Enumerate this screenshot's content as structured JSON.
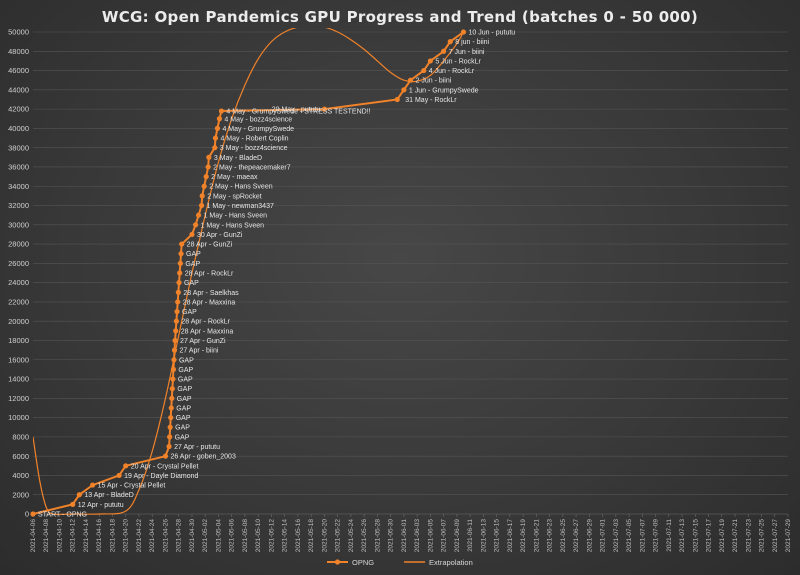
{
  "chart_data": {
    "type": "line",
    "title": "WCG: Open Pandemics GPU Progress and Trend (batches 0 - 50 000)",
    "xlabel": "",
    "ylabel": "",
    "ylim": [
      0,
      50000
    ],
    "y_ticks": [
      0,
      2000,
      4000,
      6000,
      8000,
      10000,
      12000,
      14000,
      16000,
      18000,
      20000,
      22000,
      24000,
      26000,
      28000,
      30000,
      32000,
      34000,
      36000,
      38000,
      40000,
      42000,
      44000,
      46000,
      48000,
      50000
    ],
    "x_ticks": [
      "2021-04-06",
      "2021-04-08",
      "2021-04-10",
      "2021-04-12",
      "2021-04-14",
      "2021-04-16",
      "2021-04-18",
      "2021-04-20",
      "2021-04-22",
      "2021-04-24",
      "2021-04-26",
      "2021-04-28",
      "2021-04-30",
      "2021-05-02",
      "2021-05-04",
      "2021-05-06",
      "2021-05-08",
      "2021-05-10",
      "2021-05-12",
      "2021-05-14",
      "2021-05-16",
      "2021-05-18",
      "2021-05-20",
      "2021-05-22",
      "2021-05-24",
      "2021-05-26",
      "2021-05-28",
      "2021-05-30",
      "2021-06-01",
      "2021-06-03",
      "2021-06-05",
      "2021-06-07",
      "2021-06-09",
      "2021-06-11",
      "2021-06-13",
      "2021-06-15",
      "2021-06-17",
      "2021-06-19",
      "2021-06-21",
      "2021-06-23",
      "2021-06-25",
      "2021-06-27",
      "2021-06-29",
      "2021-07-01",
      "2021-07-03",
      "2021-07-05",
      "2021-07-07",
      "2021-07-09",
      "2021-07-11",
      "2021-07-13",
      "2021-07-15",
      "2021-07-17",
      "2021-07-19",
      "2021-07-21",
      "2021-07-23",
      "2021-07-25",
      "2021-07-27",
      "2021-07-29"
    ],
    "grid": true,
    "legend_position": "bottom",
    "colors": {
      "series": "#f0822a",
      "background": "#3a3a3a",
      "grid": "#555555"
    },
    "series": [
      {
        "name": "OPNG",
        "marker": "circle",
        "points": [
          {
            "x": "2021-04-06",
            "y": 0,
            "label": "START - OPNG"
          },
          {
            "x": "2021-04-12",
            "y": 1000,
            "label": "12 Apr - pututu"
          },
          {
            "x": "2021-04-13",
            "y": 2000,
            "label": "13 Apr - BladeD"
          },
          {
            "x": "2021-04-15",
            "y": 3000,
            "label": "15 Apr - Crystal Pellet"
          },
          {
            "x": "2021-04-19",
            "y": 4000,
            "label": "19 Apr - Dayle Diamond"
          },
          {
            "x": "2021-04-20",
            "y": 5000,
            "label": "20 Apr - Crystal Pellet"
          },
          {
            "x": "2021-04-26",
            "y": 6000,
            "label": "26 Apr - goben_2003"
          },
          {
            "x": "2021-04-27",
            "y": 7000,
            "label": "27 Apr - pututu"
          },
          {
            "x": "2021-04-27",
            "y": 8000,
            "label": "GAP"
          },
          {
            "x": "2021-04-27",
            "y": 9000,
            "label": "GAP"
          },
          {
            "x": "2021-04-27",
            "y": 10000,
            "label": "GAP"
          },
          {
            "x": "2021-04-27",
            "y": 11000,
            "label": "GAP"
          },
          {
            "x": "2021-04-27",
            "y": 12000,
            "label": "GAP"
          },
          {
            "x": "2021-04-27",
            "y": 13000,
            "label": "GAP"
          },
          {
            "x": "2021-04-27",
            "y": 14000,
            "label": "GAP"
          },
          {
            "x": "2021-04-27",
            "y": 15000,
            "label": "GAP"
          },
          {
            "x": "2021-04-27",
            "y": 16000,
            "label": "GAP"
          },
          {
            "x": "2021-04-27",
            "y": 17000,
            "label": "27 Apr - biini"
          },
          {
            "x": "2021-04-27",
            "y": 18000,
            "label": "27 Apr - GunZi"
          },
          {
            "x": "2021-04-28",
            "y": 19000,
            "label": "28 Apr - Maxxina"
          },
          {
            "x": "2021-04-28",
            "y": 20000,
            "label": "28 Apr - RockLr"
          },
          {
            "x": "2021-04-28",
            "y": 21000,
            "label": "GAP"
          },
          {
            "x": "2021-04-28",
            "y": 22000,
            "label": "28 Apr - Maxxina"
          },
          {
            "x": "2021-04-28",
            "y": 23000,
            "label": "28 Apr - Saelkhas"
          },
          {
            "x": "2021-04-28",
            "y": 24000,
            "label": "GAP"
          },
          {
            "x": "2021-04-28",
            "y": 25000,
            "label": "28 Apr - RockLr"
          },
          {
            "x": "2021-04-28",
            "y": 26000,
            "label": "GAP"
          },
          {
            "x": "2021-04-28",
            "y": 27000,
            "label": "GAP"
          },
          {
            "x": "2021-04-28",
            "y": 28000,
            "label": "28 Apr - GunZi"
          },
          {
            "x": "2021-04-30",
            "y": 29000,
            "label": "30 Apr - GunZi"
          },
          {
            "x": "2021-05-01",
            "y": 30000,
            "label": "1 May - Hans Sveen"
          },
          {
            "x": "2021-05-01",
            "y": 31000,
            "label": "1 May - Hans Sveen"
          },
          {
            "x": "2021-05-01",
            "y": 32000,
            "label": "1 May - newman3437"
          },
          {
            "x": "2021-05-02",
            "y": 33000,
            "label": "2 May - spRocket"
          },
          {
            "x": "2021-05-02",
            "y": 34000,
            "label": "2 May - Hans Sveen"
          },
          {
            "x": "2021-05-02",
            "y": 35000,
            "label": "2 May - maeax"
          },
          {
            "x": "2021-05-02",
            "y": 36000,
            "label": "2 May - thepeacemaker7"
          },
          {
            "x": "2021-05-03",
            "y": 37000,
            "label": "3 May - BladeD"
          },
          {
            "x": "2021-05-03",
            "y": 38000,
            "label": "3 May - bozz4science"
          },
          {
            "x": "2021-05-04",
            "y": 39000,
            "label": "4 May - Robert Coplin"
          },
          {
            "x": "2021-05-04",
            "y": 40000,
            "label": "4 May - GrumpySwede"
          },
          {
            "x": "2021-05-04",
            "y": 41000,
            "label": "4 May - bozz4science"
          },
          {
            "x": "2021-05-04",
            "y": 41800,
            "label": "4 May - GrumpySwede - STRESS TESTEND!!"
          },
          {
            "x": "2021-05-20",
            "y": 42000,
            "label": "20 May - pututu"
          },
          {
            "x": "2021-05-31",
            "y": 43000,
            "label": "31 May - RockLr"
          },
          {
            "x": "2021-06-01",
            "y": 44000,
            "label": "1 Jun - GrumpySwede"
          },
          {
            "x": "2021-06-02",
            "y": 45000,
            "label": "2 Jun - biini"
          },
          {
            "x": "2021-06-04",
            "y": 46000,
            "label": "4 Jun - RockLr"
          },
          {
            "x": "2021-06-05",
            "y": 47000,
            "label": "5 Jun - RockLr"
          },
          {
            "x": "2021-06-07",
            "y": 48000,
            "label": "7 Jun - biini"
          },
          {
            "x": "2021-06-08",
            "y": 49000,
            "label": "8 jun - biini"
          },
          {
            "x": "2021-06-10",
            "y": 50000,
            "label": "10 Jun - pututu"
          }
        ]
      },
      {
        "name": "Extrapolation",
        "marker": "none",
        "points": [
          {
            "x": "2021-04-06",
            "y": 8000
          },
          {
            "x": "2021-04-07",
            "y": 3500
          },
          {
            "x": "2021-04-08",
            "y": 700
          },
          {
            "x": "2021-04-09",
            "y": 0
          },
          {
            "x": "2021-04-12",
            "y": 0
          },
          {
            "x": "2021-04-16",
            "y": 0
          },
          {
            "x": "2021-04-20",
            "y": 300
          },
          {
            "x": "2021-04-22",
            "y": 2500
          },
          {
            "x": "2021-04-24",
            "y": 6500
          },
          {
            "x": "2021-04-26",
            "y": 12000
          },
          {
            "x": "2021-04-28",
            "y": 18500
          },
          {
            "x": "2021-04-30",
            "y": 25000
          },
          {
            "x": "2021-05-02",
            "y": 31000
          },
          {
            "x": "2021-05-04",
            "y": 36500
          },
          {
            "x": "2021-05-06",
            "y": 41000
          },
          {
            "x": "2021-05-08",
            "y": 44500
          },
          {
            "x": "2021-05-10",
            "y": 47200
          },
          {
            "x": "2021-05-12",
            "y": 49000
          },
          {
            "x": "2021-05-14",
            "y": 50000
          },
          {
            "x": "2021-05-16",
            "y": 50500
          },
          {
            "x": "2021-05-18",
            "y": 50600
          },
          {
            "x": "2021-05-20",
            "y": 50500
          },
          {
            "x": "2021-05-22",
            "y": 50000
          },
          {
            "x": "2021-05-24",
            "y": 49200
          },
          {
            "x": "2021-05-26",
            "y": 48200
          },
          {
            "x": "2021-05-28",
            "y": 47000
          },
          {
            "x": "2021-05-30",
            "y": 45800
          },
          {
            "x": "2021-06-01",
            "y": 45000
          },
          {
            "x": "2021-06-03",
            "y": 44900
          },
          {
            "x": "2021-06-05",
            "y": 45500
          },
          {
            "x": "2021-06-07",
            "y": 47000
          },
          {
            "x": "2021-06-09",
            "y": 48800
          },
          {
            "x": "2021-06-10",
            "y": 50000
          }
        ]
      }
    ]
  }
}
